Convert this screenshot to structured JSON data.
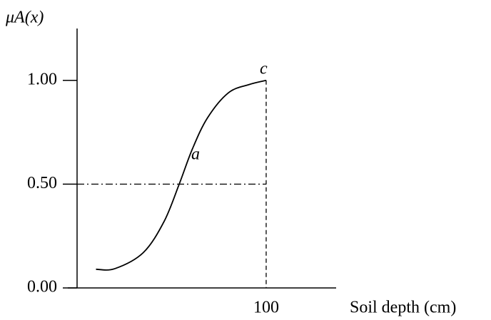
{
  "chart_data": {
    "type": "line",
    "y_label": "μA(x)",
    "x_label": "Soil depth (cm)",
    "annotations": [
      "a",
      "c"
    ],
    "x": [
      10,
      20,
      35,
      46,
      54,
      61,
      69,
      80,
      91,
      100
    ],
    "series": [
      {
        "color": "#000000",
        "values": [
          0.09,
          0.093,
          0.17,
          0.32,
          0.5,
          0.67,
          0.82,
          0.94,
          0.98,
          1.0
        ]
      }
    ],
    "xlim": [
      0,
      137
    ],
    "ylim": [
      0,
      1.25
    ],
    "xticks": [
      100
    ],
    "yticks": [
      {
        "value": 0,
        "label": "0.00"
      },
      {
        "value": 0.5,
        "label": "0.50"
      },
      {
        "value": 1,
        "label": "1.00"
      }
    ]
  }
}
